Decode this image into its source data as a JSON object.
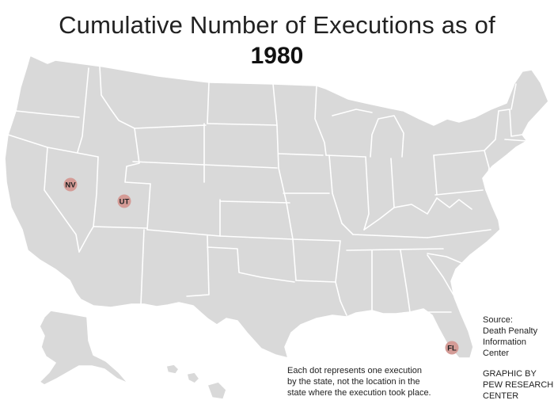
{
  "title": "Cumulative Number of Executions as of",
  "year": "1980",
  "colors": {
    "land": "#d9d9d9",
    "border": "#ffffff",
    "dot": "#d49b96"
  },
  "execution_dots": [
    {
      "state": "NV",
      "label": "NV",
      "count": 1
    },
    {
      "state": "UT",
      "label": "UT",
      "count": 1
    },
    {
      "state": "FL",
      "label": "FL",
      "count": 1
    }
  ],
  "note": {
    "line1": "Each dot represents one execution",
    "line2": "by the state, not the location in the",
    "line3": "state where the execution took place."
  },
  "source": {
    "line1": "Source:",
    "line2": "Death Penalty",
    "line3": "Information",
    "line4": "Center"
  },
  "credit": {
    "line1": "GRAPHIC BY",
    "line2": "PEW RESEARCH",
    "line3": "CENTER"
  }
}
